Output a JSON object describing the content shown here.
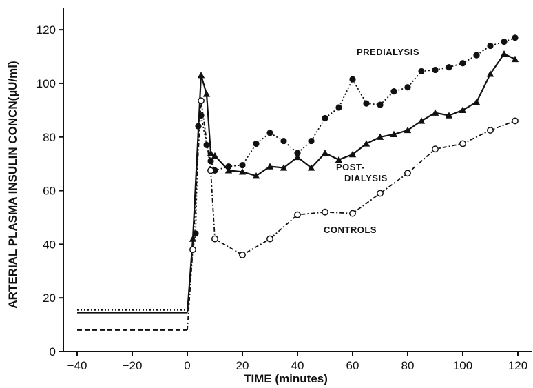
{
  "chart_data": {
    "type": "line",
    "xlabel": "TIME (minutes)",
    "ylabel": "ARTERIAL PLASMA INSULIN CONCN(µU/ml)",
    "xlim": [
      -45,
      125
    ],
    "ylim": [
      0,
      128
    ],
    "xticks": [
      -40,
      -20,
      0,
      20,
      40,
      60,
      80,
      100,
      120
    ],
    "yticks": [
      0,
      20,
      40,
      60,
      80,
      100,
      120
    ],
    "grid": false,
    "series": [
      {
        "name": "PREDIALYSIS",
        "marker": "filled-circle",
        "line_style": "dotted",
        "baseline": {
          "x": [
            -40,
            0
          ],
          "y": 15.5
        },
        "points": [
          [
            0,
            15.5
          ],
          [
            2,
            38
          ],
          [
            3,
            44
          ],
          [
            4,
            84
          ],
          [
            5,
            88
          ],
          [
            7,
            77
          ],
          [
            8.5,
            71
          ],
          [
            10,
            67.5
          ],
          [
            15,
            69
          ],
          [
            20,
            69.5
          ],
          [
            25,
            77.5
          ],
          [
            30,
            81.5
          ],
          [
            35,
            78.5
          ],
          [
            40,
            74
          ],
          [
            45,
            78.5
          ],
          [
            50,
            87
          ],
          [
            55,
            91
          ],
          [
            60,
            101.5
          ],
          [
            65,
            92.5
          ],
          [
            70,
            92
          ],
          [
            75,
            97
          ],
          [
            80,
            98.5
          ],
          [
            85,
            104.5
          ],
          [
            90,
            105
          ],
          [
            95,
            106
          ],
          [
            100,
            107.5
          ],
          [
            105,
            110.5
          ],
          [
            110,
            114
          ],
          [
            115,
            115.5
          ],
          [
            119,
            117
          ]
        ]
      },
      {
        "name": "POST-\nDIALYSIS",
        "marker": "filled-triangle",
        "line_style": "solid",
        "baseline": {
          "x": [
            -40,
            0
          ],
          "y": 14.5
        },
        "points": [
          [
            0,
            14.5
          ],
          [
            2,
            42
          ],
          [
            5,
            103
          ],
          [
            7,
            96
          ],
          [
            8.5,
            74
          ],
          [
            10,
            73
          ],
          [
            15,
            67.5
          ],
          [
            20,
            67
          ],
          [
            25,
            65.5
          ],
          [
            30,
            69
          ],
          [
            35,
            68.5
          ],
          [
            40,
            72.5
          ],
          [
            45,
            68.5
          ],
          [
            50,
            74
          ],
          [
            55,
            71.5
          ],
          [
            60,
            73.5
          ],
          [
            65,
            77.5
          ],
          [
            70,
            80
          ],
          [
            75,
            81
          ],
          [
            80,
            82.5
          ],
          [
            85,
            86
          ],
          [
            90,
            89
          ],
          [
            95,
            88
          ],
          [
            100,
            90
          ],
          [
            105,
            93
          ],
          [
            110,
            103.5
          ],
          [
            115,
            111
          ],
          [
            119,
            109
          ]
        ]
      },
      {
        "name": "CONTROLS",
        "marker": "open-circle",
        "line_style": "dash-dot",
        "baseline": {
          "x": [
            -40,
            0
          ],
          "y": 8
        },
        "points": [
          [
            0,
            8
          ],
          [
            2,
            38
          ],
          [
            5,
            93.5
          ],
          [
            8.5,
            67.5
          ],
          [
            10,
            42
          ],
          [
            20,
            36
          ],
          [
            30,
            42
          ],
          [
            40,
            51
          ],
          [
            50,
            52
          ],
          [
            60,
            51.5
          ],
          [
            70,
            59
          ],
          [
            80,
            66.5
          ],
          [
            90,
            75.5
          ],
          [
            100,
            77.5
          ],
          [
            110,
            82.5
          ],
          [
            119,
            86
          ]
        ]
      }
    ]
  }
}
